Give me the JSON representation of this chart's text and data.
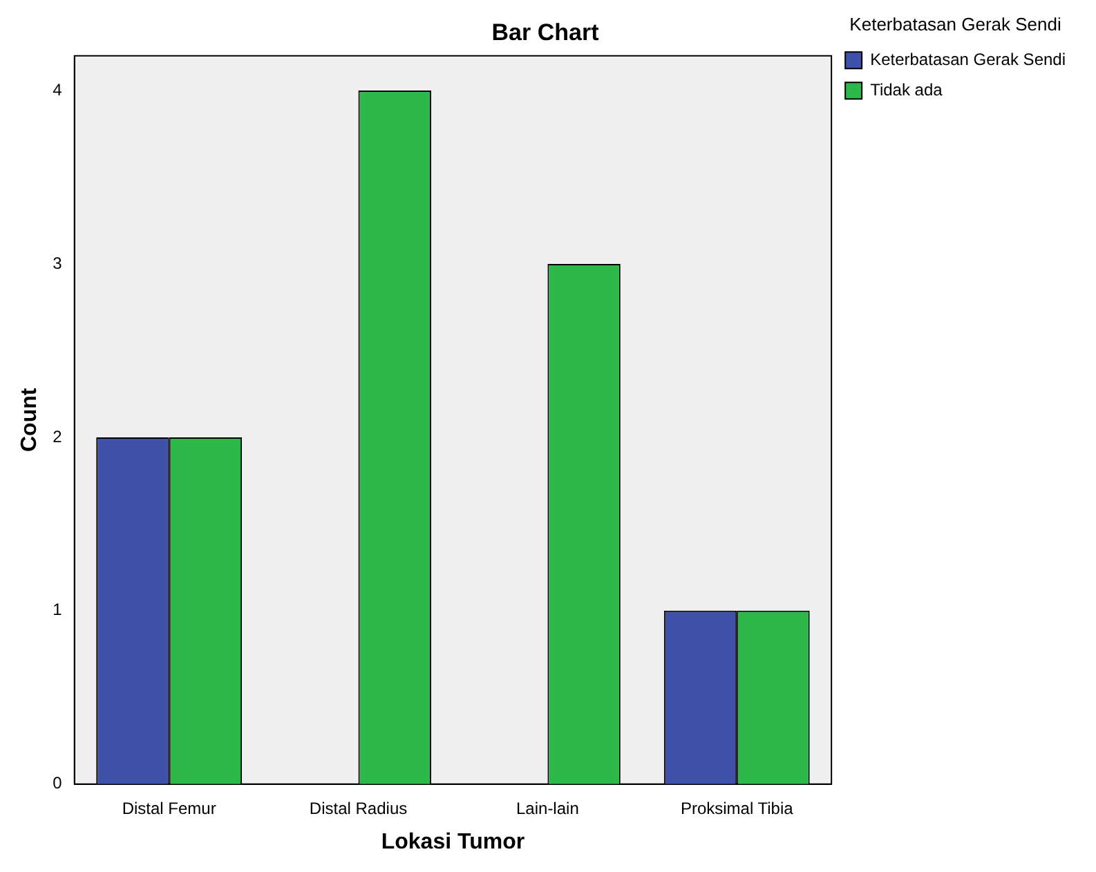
{
  "chart_data": {
    "type": "bar",
    "title": "Bar Chart",
    "xlabel": "Lokasi Tumor",
    "ylabel": "Count",
    "legend_title": "Keterbatasan Gerak Sendi",
    "categories": [
      "Distal Femur",
      "Distal Radius",
      "Lain-lain",
      "Proksimal Tibia"
    ],
    "series": [
      {
        "name": "Keterbatasan Gerak Sendi",
        "color": "#3f51a8",
        "values": [
          2,
          null,
          null,
          1
        ]
      },
      {
        "name": "Tidak ada",
        "color": "#2db84a",
        "values": [
          2,
          4,
          3,
          1
        ]
      }
    ],
    "ylim": [
      0,
      4.2
    ],
    "yticks": [
      0,
      1,
      2,
      3,
      4
    ],
    "grid": false,
    "legend": "top right"
  }
}
